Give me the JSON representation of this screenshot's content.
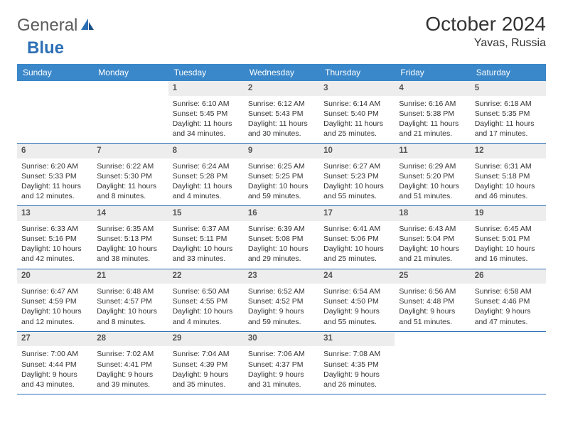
{
  "brand": {
    "part1": "General",
    "part2": "Blue"
  },
  "title": "October 2024",
  "location": "Yavas, Russia",
  "colors": {
    "header_bg": "#3a87c9",
    "header_text": "#ffffff",
    "daynum_bg": "#ededed",
    "border": "#2c6fb5",
    "text": "#333333",
    "logo_gray": "#5a5a5a",
    "logo_blue": "#2c6fb5",
    "page_bg": "#ffffff"
  },
  "daynames": [
    "Sunday",
    "Monday",
    "Tuesday",
    "Wednesday",
    "Thursday",
    "Friday",
    "Saturday"
  ],
  "weeks": [
    [
      null,
      null,
      {
        "num": "1",
        "sunrise": "6:10 AM",
        "sunset": "5:45 PM",
        "dl": "11 hours and 34 minutes."
      },
      {
        "num": "2",
        "sunrise": "6:12 AM",
        "sunset": "5:43 PM",
        "dl": "11 hours and 30 minutes."
      },
      {
        "num": "3",
        "sunrise": "6:14 AM",
        "sunset": "5:40 PM",
        "dl": "11 hours and 25 minutes."
      },
      {
        "num": "4",
        "sunrise": "6:16 AM",
        "sunset": "5:38 PM",
        "dl": "11 hours and 21 minutes."
      },
      {
        "num": "5",
        "sunrise": "6:18 AM",
        "sunset": "5:35 PM",
        "dl": "11 hours and 17 minutes."
      }
    ],
    [
      {
        "num": "6",
        "sunrise": "6:20 AM",
        "sunset": "5:33 PM",
        "dl": "11 hours and 12 minutes."
      },
      {
        "num": "7",
        "sunrise": "6:22 AM",
        "sunset": "5:30 PM",
        "dl": "11 hours and 8 minutes."
      },
      {
        "num": "8",
        "sunrise": "6:24 AM",
        "sunset": "5:28 PM",
        "dl": "11 hours and 4 minutes."
      },
      {
        "num": "9",
        "sunrise": "6:25 AM",
        "sunset": "5:25 PM",
        "dl": "10 hours and 59 minutes."
      },
      {
        "num": "10",
        "sunrise": "6:27 AM",
        "sunset": "5:23 PM",
        "dl": "10 hours and 55 minutes."
      },
      {
        "num": "11",
        "sunrise": "6:29 AM",
        "sunset": "5:20 PM",
        "dl": "10 hours and 51 minutes."
      },
      {
        "num": "12",
        "sunrise": "6:31 AM",
        "sunset": "5:18 PM",
        "dl": "10 hours and 46 minutes."
      }
    ],
    [
      {
        "num": "13",
        "sunrise": "6:33 AM",
        "sunset": "5:16 PM",
        "dl": "10 hours and 42 minutes."
      },
      {
        "num": "14",
        "sunrise": "6:35 AM",
        "sunset": "5:13 PM",
        "dl": "10 hours and 38 minutes."
      },
      {
        "num": "15",
        "sunrise": "6:37 AM",
        "sunset": "5:11 PM",
        "dl": "10 hours and 33 minutes."
      },
      {
        "num": "16",
        "sunrise": "6:39 AM",
        "sunset": "5:08 PM",
        "dl": "10 hours and 29 minutes."
      },
      {
        "num": "17",
        "sunrise": "6:41 AM",
        "sunset": "5:06 PM",
        "dl": "10 hours and 25 minutes."
      },
      {
        "num": "18",
        "sunrise": "6:43 AM",
        "sunset": "5:04 PM",
        "dl": "10 hours and 21 minutes."
      },
      {
        "num": "19",
        "sunrise": "6:45 AM",
        "sunset": "5:01 PM",
        "dl": "10 hours and 16 minutes."
      }
    ],
    [
      {
        "num": "20",
        "sunrise": "6:47 AM",
        "sunset": "4:59 PM",
        "dl": "10 hours and 12 minutes."
      },
      {
        "num": "21",
        "sunrise": "6:48 AM",
        "sunset": "4:57 PM",
        "dl": "10 hours and 8 minutes."
      },
      {
        "num": "22",
        "sunrise": "6:50 AM",
        "sunset": "4:55 PM",
        "dl": "10 hours and 4 minutes."
      },
      {
        "num": "23",
        "sunrise": "6:52 AM",
        "sunset": "4:52 PM",
        "dl": "9 hours and 59 minutes."
      },
      {
        "num": "24",
        "sunrise": "6:54 AM",
        "sunset": "4:50 PM",
        "dl": "9 hours and 55 minutes."
      },
      {
        "num": "25",
        "sunrise": "6:56 AM",
        "sunset": "4:48 PM",
        "dl": "9 hours and 51 minutes."
      },
      {
        "num": "26",
        "sunrise": "6:58 AM",
        "sunset": "4:46 PM",
        "dl": "9 hours and 47 minutes."
      }
    ],
    [
      {
        "num": "27",
        "sunrise": "7:00 AM",
        "sunset": "4:44 PM",
        "dl": "9 hours and 43 minutes."
      },
      {
        "num": "28",
        "sunrise": "7:02 AM",
        "sunset": "4:41 PM",
        "dl": "9 hours and 39 minutes."
      },
      {
        "num": "29",
        "sunrise": "7:04 AM",
        "sunset": "4:39 PM",
        "dl": "9 hours and 35 minutes."
      },
      {
        "num": "30",
        "sunrise": "7:06 AM",
        "sunset": "4:37 PM",
        "dl": "9 hours and 31 minutes."
      },
      {
        "num": "31",
        "sunrise": "7:08 AM",
        "sunset": "4:35 PM",
        "dl": "9 hours and 26 minutes."
      },
      null,
      null
    ]
  ],
  "labels": {
    "sunrise": "Sunrise:",
    "sunset": "Sunset:",
    "daylight": "Daylight:"
  }
}
